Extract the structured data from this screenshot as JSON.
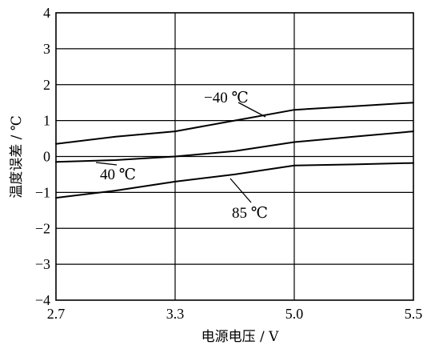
{
  "chart_data": {
    "type": "line",
    "title": "",
    "xlabel": "电源电压 / V",
    "ylabel": "温度误差 / ℃",
    "x_categories": [
      "2.7",
      "3.3",
      "5.0",
      "5.5"
    ],
    "ylim": [
      -4,
      4
    ],
    "y_ticks": [
      "−4",
      "−3",
      "−2",
      "−1",
      "0",
      "1",
      "2",
      "3",
      "4"
    ],
    "grid": true,
    "series": [
      {
        "name": "−40 ℃",
        "x": [
          0.0,
          0.5,
          1.0,
          1.5,
          2.0,
          2.5,
          3.0
        ],
        "y": [
          0.35,
          0.55,
          0.7,
          1.0,
          1.3,
          1.4,
          1.5
        ]
      },
      {
        "name": "40 ℃",
        "x": [
          0.0,
          0.5,
          1.0,
          1.5,
          2.0,
          2.5,
          3.0
        ],
        "y": [
          -0.15,
          -0.1,
          0.0,
          0.15,
          0.4,
          0.55,
          0.7
        ]
      },
      {
        "name": "85 ℃",
        "x": [
          0.0,
          0.5,
          1.0,
          1.5,
          2.0,
          2.5,
          3.0
        ],
        "y": [
          -1.15,
          -0.95,
          -0.7,
          -0.5,
          -0.25,
          -0.22,
          -0.18
        ]
      }
    ]
  }
}
